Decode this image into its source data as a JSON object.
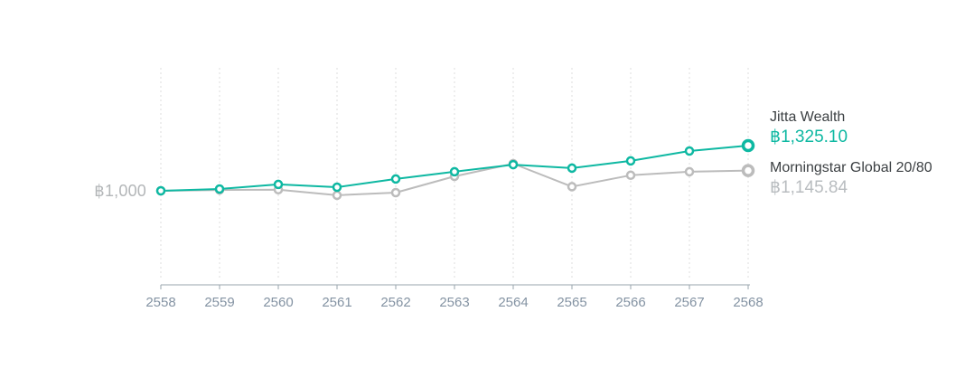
{
  "chart_data": {
    "type": "line",
    "title": "",
    "baseline_label": "฿1,000",
    "baseline_value": 1000,
    "x_labels": [
      "2558",
      "2559",
      "2560",
      "2561",
      "2562",
      "2563",
      "2564",
      "2565",
      "2566",
      "2567",
      "2568"
    ],
    "grid": "vertical-dashed",
    "legend_position": "right",
    "ylim": [
      940,
      1420
    ],
    "series": [
      {
        "name": "Jitta Wealth",
        "final_label": "฿1,325.10",
        "color": "#0eb8a2",
        "values": [
          1000,
          1013,
          1046,
          1026,
          1085,
          1137,
          1188,
          1163,
          1215,
          1286,
          1325.1
        ]
      },
      {
        "name": "Morningstar Global 20/80",
        "final_label": "฿1,145.84",
        "color": "#bcbcbc",
        "values": [
          1000,
          1006,
          1008,
          968,
          987,
          1104,
          1195,
          1030,
          1112,
          1137,
          1145.84
        ]
      }
    ],
    "colors": {
      "accent_teal": "#0eb8a2",
      "comparison_gray": "#bcbcbc",
      "gridline": "#dcdcdc",
      "axis": "#9aa4ae",
      "axis_label": "#8493a3",
      "baseline_text": "#b3b6b8",
      "legend_name_text": "#3c4043",
      "legend_secondary_value_text": "#b9bdc0",
      "marker_fill": "#ffffff"
    }
  }
}
